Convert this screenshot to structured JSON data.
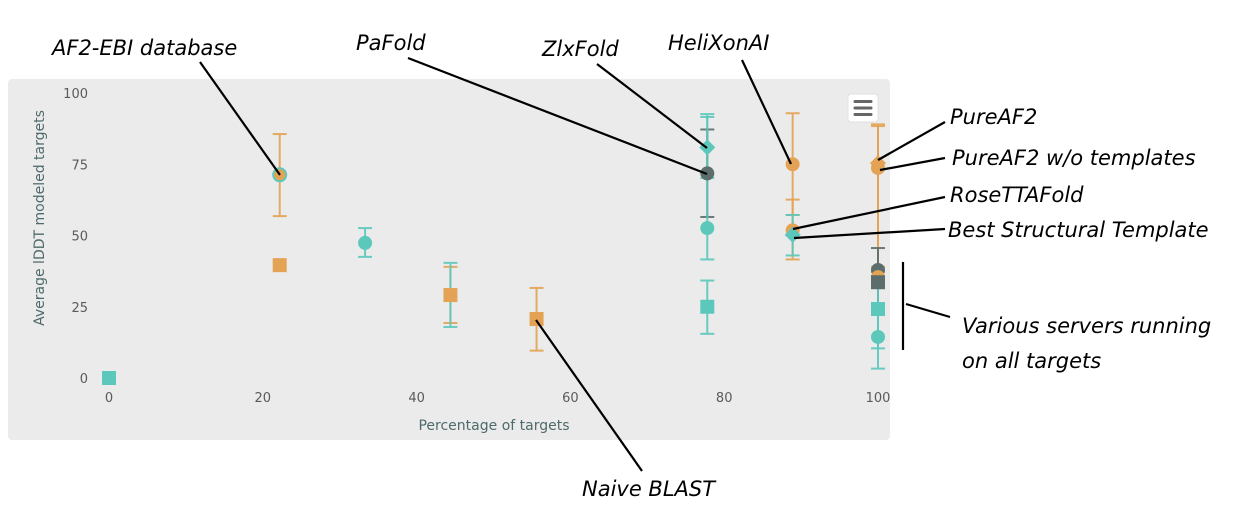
{
  "chart_data": {
    "type": "scatter",
    "title": "",
    "xlabel": "Percentage of targets",
    "ylabel": "Average lDDT modeled targets",
    "xlim": [
      0,
      100
    ],
    "ylim": [
      0,
      100
    ],
    "x_ticks": [
      "0",
      "20",
      "40",
      "60",
      "80",
      "100"
    ],
    "y_ticks": [
      "0",
      "25",
      "50",
      "75",
      "100"
    ],
    "grid": false,
    "legend": "none",
    "colors": {
      "orange": "#e4a254",
      "teal": "#5cc8bc",
      "dark": "#5b6e6b"
    },
    "points": [
      {
        "x": 22.2,
        "y": 71.3,
        "err": [
          56.8,
          85.6
        ],
        "shape": "circle",
        "color": "orange"
      },
      {
        "x": 22.2,
        "y": 71.3,
        "shape": "circle-outline",
        "color": "teal"
      },
      {
        "x": 22.2,
        "y": 39.6,
        "shape": "square",
        "color": "orange"
      },
      {
        "x": 33.3,
        "y": 47.4,
        "err": [
          42.5,
          52.6
        ],
        "shape": "circle",
        "color": "teal"
      },
      {
        "x": 44.4,
        "y": 29.1,
        "err": [
          19.3,
          39.0
        ],
        "shape": "square",
        "color": "orange"
      },
      {
        "x": 44.4,
        "y": 29.1,
        "err": [
          17.9,
          40.4
        ],
        "shape": "none",
        "color": "teal"
      },
      {
        "x": 55.6,
        "y": 20.7,
        "err": [
          9.6,
          31.6
        ],
        "shape": "square",
        "color": "orange"
      },
      {
        "x": 0,
        "y": 0,
        "shape": "square",
        "color": "teal"
      },
      {
        "x": 77.8,
        "y": 80.9,
        "err": [
          70.2,
          91.6
        ],
        "shape": "diamond",
        "color": "teal"
      },
      {
        "x": 77.8,
        "y": 71.8,
        "err": [
          56.5,
          87.2
        ],
        "shape": "circle",
        "color": "dark"
      },
      {
        "x": 77.8,
        "y": 52.6,
        "err": [
          41.6,
          92.6
        ],
        "shape": "circle",
        "color": "teal"
      },
      {
        "x": 77.8,
        "y": 25.0,
        "err": [
          15.5,
          34.2
        ],
        "shape": "square",
        "color": "teal"
      },
      {
        "x": 88.9,
        "y": 75.0,
        "err": [
          57.2,
          92.9
        ],
        "shape": "circle",
        "color": "orange"
      },
      {
        "x": 88.9,
        "y": 51.8,
        "err": [
          41.6,
          62.6
        ],
        "shape": "circle",
        "color": "orange"
      },
      {
        "x": 88.9,
        "y": 50.2,
        "err": [
          43.0,
          57.2
        ],
        "shape": "diamond",
        "color": "teal"
      },
      {
        "x": 100,
        "y": 75.4,
        "err": [
          37.2,
          89.0
        ],
        "shape": "diamond",
        "color": "orange"
      },
      {
        "x": 100,
        "y": 73.7,
        "err": [
          39.0,
          88.4
        ],
        "shape": "circle",
        "color": "orange"
      },
      {
        "x": 100,
        "y": 37.9,
        "err": [
          25.9,
          45.6
        ],
        "shape": "circle",
        "color": "dark"
      },
      {
        "x": 100,
        "y": 35.4,
        "shape": "circle",
        "color": "orange"
      },
      {
        "x": 100,
        "y": 33.6,
        "shape": "square",
        "color": "dark"
      },
      {
        "x": 100,
        "y": 24.2,
        "err": [
          10.4,
          34.0
        ],
        "shape": "square",
        "color": "teal"
      },
      {
        "x": 100,
        "y": 14.4,
        "err": [
          3.3,
          25.6
        ],
        "shape": "circle",
        "color": "teal"
      }
    ],
    "annotations": [
      "AF2-EBI database",
      "PaFold",
      "ZlxFold",
      "HeliXonAI",
      "PureAF2",
      "PureAF2 w/o templates",
      "RoseTTAFold",
      "Best Structural Template",
      "Various servers running",
      "on all targets",
      "Naive BLAST"
    ]
  },
  "menu": {
    "icon": "hamburger-menu-icon"
  }
}
